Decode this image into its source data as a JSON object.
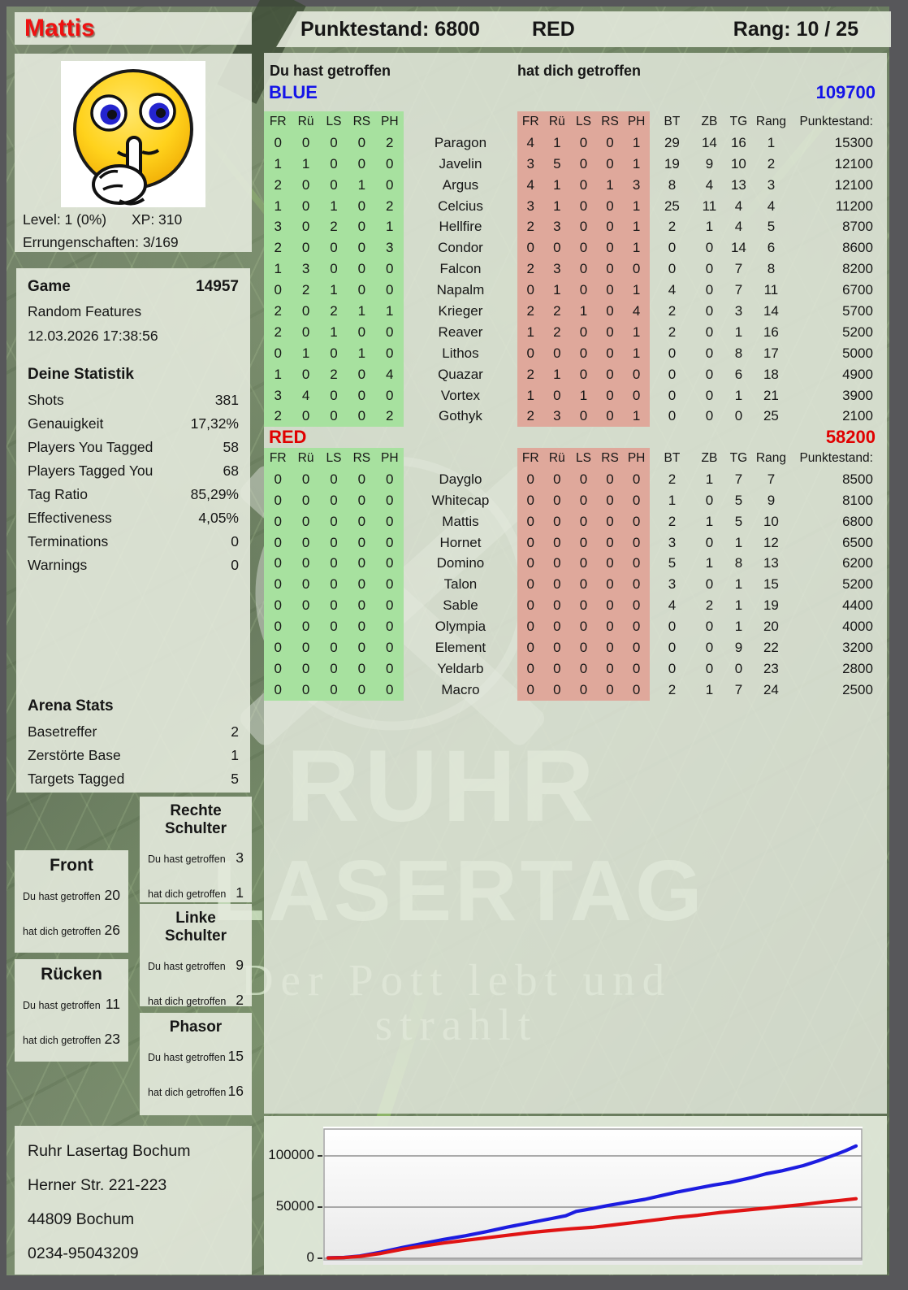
{
  "colors": {
    "team-blue": "#1414e8",
    "team-red": "#e00000",
    "green-cell": "#a7e19f",
    "red-cell": "#dfa89b"
  },
  "player": {
    "name": "Mattis",
    "level_label": "Level: 1 (0%)",
    "xp_label": "XP: 310",
    "achievements_label": "Errungenschaften: 3/169",
    "avatar": "shushing-smiley"
  },
  "header": {
    "punktestand_label": "Punktestand: 6800",
    "team": "RED",
    "rang_label": "Rang: 10 / 25"
  },
  "labels": {
    "du_hast": "Du hast getroffen",
    "hat_dich": "hat dich getroffen"
  },
  "game_panel": {
    "title": "Game",
    "game_number": "14957",
    "mode": "Random Features",
    "datetime": "12.03.2026 17:38:56",
    "stats_title": "Deine Statistik",
    "stats": [
      [
        "Shots",
        "381"
      ],
      [
        "Genauigkeit",
        "17,32%"
      ],
      [
        "Players You Tagged",
        "58"
      ],
      [
        "Players Tagged You",
        "68"
      ],
      [
        "Tag Ratio",
        "85,29%"
      ],
      [
        "Effectiveness",
        "4,05%"
      ],
      [
        "Terminations",
        "0"
      ],
      [
        "Warnings",
        "0"
      ]
    ],
    "arena_title": "Arena Stats",
    "arena_stats": [
      [
        "Basetreffer",
        "2"
      ],
      [
        "Zerstörte Base",
        "1"
      ],
      [
        "Targets Tagged",
        "5"
      ]
    ]
  },
  "body_parts": {
    "rechte_schulter": {
      "title": "Rechte Schulter",
      "hit": "3",
      "got": "1"
    },
    "front": {
      "title": "Front",
      "hit": "20",
      "got": "26"
    },
    "linke_schulter": {
      "title": "Linke Schulter",
      "hit": "9",
      "got": "2"
    },
    "ruecken": {
      "title": "Rücken",
      "hit": "11",
      "got": "23"
    },
    "phasor": {
      "title": "Phasor",
      "hit": "15",
      "got": "16"
    }
  },
  "address": {
    "lines": [
      "Ruhr Lasertag Bochum",
      "Herner Str. 221-223",
      "44809 Bochum",
      "0234-95043209"
    ]
  },
  "watermark": {
    "line1": "RUHR",
    "line2": "LASERTAG",
    "line3": "Der Pott lebt und strahlt"
  },
  "tables": {
    "col_headers": [
      "FR",
      "Rü",
      "LS",
      "RS",
      "PH"
    ],
    "stat_headers": [
      "BT",
      "ZB",
      "TG",
      "Rang",
      "Punktestand:"
    ],
    "blue": {
      "team": "BLUE",
      "total": "109700",
      "rows": [
        {
          "name": "Paragon",
          "hit": [
            0,
            0,
            0,
            0,
            2
          ],
          "got": [
            4,
            1,
            0,
            0,
            1
          ],
          "stats": [
            29,
            14,
            16,
            1
          ],
          "score": "15300"
        },
        {
          "name": "Javelin",
          "hit": [
            1,
            1,
            0,
            0,
            0
          ],
          "got": [
            3,
            5,
            0,
            0,
            1
          ],
          "stats": [
            19,
            9,
            10,
            2
          ],
          "score": "12100"
        },
        {
          "name": "Argus",
          "hit": [
            2,
            0,
            0,
            1,
            0
          ],
          "got": [
            4,
            1,
            0,
            1,
            3
          ],
          "stats": [
            8,
            4,
            13,
            3
          ],
          "score": "12100"
        },
        {
          "name": "Celcius",
          "hit": [
            1,
            0,
            1,
            0,
            2
          ],
          "got": [
            3,
            1,
            0,
            0,
            1
          ],
          "stats": [
            25,
            11,
            4,
            4
          ],
          "score": "11200"
        },
        {
          "name": "Hellfire",
          "hit": [
            3,
            0,
            2,
            0,
            1
          ],
          "got": [
            2,
            3,
            0,
            0,
            1
          ],
          "stats": [
            2,
            1,
            4,
            5
          ],
          "score": "8700"
        },
        {
          "name": "Condor",
          "hit": [
            2,
            0,
            0,
            0,
            3
          ],
          "got": [
            0,
            0,
            0,
            0,
            1
          ],
          "stats": [
            0,
            0,
            14,
            6
          ],
          "score": "8600"
        },
        {
          "name": "Falcon",
          "hit": [
            1,
            3,
            0,
            0,
            0
          ],
          "got": [
            2,
            3,
            0,
            0,
            0
          ],
          "stats": [
            0,
            0,
            7,
            8
          ],
          "score": "8200"
        },
        {
          "name": "Napalm",
          "hit": [
            0,
            2,
            1,
            0,
            0
          ],
          "got": [
            0,
            1,
            0,
            0,
            1
          ],
          "stats": [
            4,
            0,
            7,
            11
          ],
          "score": "6700"
        },
        {
          "name": "Krieger",
          "hit": [
            2,
            0,
            2,
            1,
            1
          ],
          "got": [
            2,
            2,
            1,
            0,
            4
          ],
          "stats": [
            2,
            0,
            3,
            14
          ],
          "score": "5700"
        },
        {
          "name": "Reaver",
          "hit": [
            2,
            0,
            1,
            0,
            0
          ],
          "got": [
            1,
            2,
            0,
            0,
            1
          ],
          "stats": [
            2,
            0,
            1,
            16
          ],
          "score": "5200"
        },
        {
          "name": "Lithos",
          "hit": [
            0,
            1,
            0,
            1,
            0
          ],
          "got": [
            0,
            0,
            0,
            0,
            1
          ],
          "stats": [
            0,
            0,
            8,
            17
          ],
          "score": "5000"
        },
        {
          "name": "Quazar",
          "hit": [
            1,
            0,
            2,
            0,
            4
          ],
          "got": [
            2,
            1,
            0,
            0,
            0
          ],
          "stats": [
            0,
            0,
            6,
            18
          ],
          "score": "4900"
        },
        {
          "name": "Vortex",
          "hit": [
            3,
            4,
            0,
            0,
            0
          ],
          "got": [
            1,
            0,
            1,
            0,
            0
          ],
          "stats": [
            0,
            0,
            1,
            21
          ],
          "score": "3900"
        },
        {
          "name": "Gothyk",
          "hit": [
            2,
            0,
            0,
            0,
            2
          ],
          "got": [
            2,
            3,
            0,
            0,
            1
          ],
          "stats": [
            0,
            0,
            0,
            25
          ],
          "score": "2100"
        }
      ]
    },
    "red": {
      "team": "RED",
      "total": "58200",
      "rows": [
        {
          "name": "Dayglo",
          "hit": [
            0,
            0,
            0,
            0,
            0
          ],
          "got": [
            0,
            0,
            0,
            0,
            0
          ],
          "stats": [
            2,
            1,
            7,
            7
          ],
          "score": "8500"
        },
        {
          "name": "Whitecap",
          "hit": [
            0,
            0,
            0,
            0,
            0
          ],
          "got": [
            0,
            0,
            0,
            0,
            0
          ],
          "stats": [
            1,
            0,
            5,
            9
          ],
          "score": "8100"
        },
        {
          "name": "Mattis",
          "hit": [
            0,
            0,
            0,
            0,
            0
          ],
          "got": [
            0,
            0,
            0,
            0,
            0
          ],
          "stats": [
            2,
            1,
            5,
            10
          ],
          "score": "6800"
        },
        {
          "name": "Hornet",
          "hit": [
            0,
            0,
            0,
            0,
            0
          ],
          "got": [
            0,
            0,
            0,
            0,
            0
          ],
          "stats": [
            3,
            0,
            1,
            12
          ],
          "score": "6500"
        },
        {
          "name": "Domino",
          "hit": [
            0,
            0,
            0,
            0,
            0
          ],
          "got": [
            0,
            0,
            0,
            0,
            0
          ],
          "stats": [
            5,
            1,
            8,
            13
          ],
          "score": "6200"
        },
        {
          "name": "Talon",
          "hit": [
            0,
            0,
            0,
            0,
            0
          ],
          "got": [
            0,
            0,
            0,
            0,
            0
          ],
          "stats": [
            3,
            0,
            1,
            15
          ],
          "score": "5200"
        },
        {
          "name": "Sable",
          "hit": [
            0,
            0,
            0,
            0,
            0
          ],
          "got": [
            0,
            0,
            0,
            0,
            0
          ],
          "stats": [
            4,
            2,
            1,
            19
          ],
          "score": "4400"
        },
        {
          "name": "Olympia",
          "hit": [
            0,
            0,
            0,
            0,
            0
          ],
          "got": [
            0,
            0,
            0,
            0,
            0
          ],
          "stats": [
            0,
            0,
            1,
            20
          ],
          "score": "4000"
        },
        {
          "name": "Element",
          "hit": [
            0,
            0,
            0,
            0,
            0
          ],
          "got": [
            0,
            0,
            0,
            0,
            0
          ],
          "stats": [
            0,
            0,
            9,
            22
          ],
          "score": "3200"
        },
        {
          "name": "Yeldarb",
          "hit": [
            0,
            0,
            0,
            0,
            0
          ],
          "got": [
            0,
            0,
            0,
            0,
            0
          ],
          "stats": [
            0,
            0,
            0,
            23
          ],
          "score": "2800"
        },
        {
          "name": "Macro",
          "hit": [
            0,
            0,
            0,
            0,
            0
          ],
          "got": [
            0,
            0,
            0,
            0,
            0
          ],
          "stats": [
            2,
            1,
            7,
            24
          ],
          "score": "2500"
        }
      ]
    }
  },
  "chart_data": {
    "type": "line",
    "title": "",
    "xlabel": "",
    "ylabel": "",
    "yticks": [
      0,
      50000,
      100000
    ],
    "ylim": [
      0,
      128000
    ],
    "grid": true,
    "legend": "none",
    "series": [
      {
        "name": "BLUE",
        "color": "#1c1ce0",
        "points": [
          [
            0,
            500
          ],
          [
            0.03,
            800
          ],
          [
            0.06,
            2200
          ],
          [
            0.1,
            6000
          ],
          [
            0.14,
            10500
          ],
          [
            0.18,
            14500
          ],
          [
            0.22,
            18500
          ],
          [
            0.26,
            22000
          ],
          [
            0.3,
            26000
          ],
          [
            0.34,
            30500
          ],
          [
            0.38,
            34500
          ],
          [
            0.42,
            38500
          ],
          [
            0.45,
            41500
          ],
          [
            0.47,
            45800
          ],
          [
            0.5,
            48500
          ],
          [
            0.53,
            51500
          ],
          [
            0.57,
            55000
          ],
          [
            0.6,
            57500
          ],
          [
            0.63,
            61000
          ],
          [
            0.66,
            64500
          ],
          [
            0.7,
            68500
          ],
          [
            0.73,
            71500
          ],
          [
            0.76,
            74000
          ],
          [
            0.8,
            78500
          ],
          [
            0.83,
            82500
          ],
          [
            0.86,
            85500
          ],
          [
            0.9,
            90500
          ],
          [
            0.93,
            95500
          ],
          [
            0.96,
            101000
          ],
          [
            0.98,
            105000
          ],
          [
            1,
            109700
          ]
        ]
      },
      {
        "name": "RED",
        "color": "#e01414",
        "points": [
          [
            0,
            300
          ],
          [
            0.03,
            600
          ],
          [
            0.06,
            1800
          ],
          [
            0.1,
            4800
          ],
          [
            0.14,
            8800
          ],
          [
            0.18,
            12000
          ],
          [
            0.22,
            15000
          ],
          [
            0.26,
            17500
          ],
          [
            0.3,
            20000
          ],
          [
            0.34,
            22500
          ],
          [
            0.38,
            25000
          ],
          [
            0.42,
            27000
          ],
          [
            0.46,
            28800
          ],
          [
            0.5,
            30200
          ],
          [
            0.54,
            32500
          ],
          [
            0.58,
            35000
          ],
          [
            0.62,
            37500
          ],
          [
            0.66,
            40000
          ],
          [
            0.7,
            42000
          ],
          [
            0.74,
            44500
          ],
          [
            0.78,
            46500
          ],
          [
            0.82,
            48500
          ],
          [
            0.86,
            50500
          ],
          [
            0.9,
            52500
          ],
          [
            0.94,
            55000
          ],
          [
            0.97,
            56500
          ],
          [
            1,
            58200
          ]
        ]
      }
    ]
  }
}
